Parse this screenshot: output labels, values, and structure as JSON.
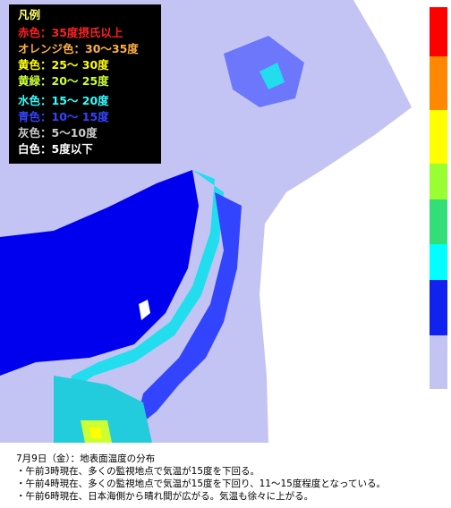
{
  "legend": {
    "title": "凡例",
    "items": [
      {
        "label": "赤色：35度摂氏以上",
        "color": "#ff2020"
      },
      {
        "label": "オレンジ色：30～35度",
        "color": "#ffb040"
      },
      {
        "label": "黄色：25～ 30度",
        "color": "#ffff00"
      },
      {
        "label": "黄緑：20～ 25度",
        "color": "#ccff33"
      },
      {
        "label": "水色：15～ 20度",
        "color": "#33ffff"
      },
      {
        "label": "青色：10～ 15度",
        "color": "#3344ff"
      },
      {
        "label": "灰色：5～10度",
        "color": "#cccccc"
      },
      {
        "label": "白色：5度以下",
        "color": "#ffffff"
      }
    ]
  },
  "caption": {
    "title": "7月9日（金）：地表面温度の分布",
    "notes": [
      "・午前3時現在、多くの監視地点で気温が15度を下回る。",
      "・午前4時現在、多くの監視地点で気温が15度を下回り、11～15度程度となっている。",
      "・午前6時現在、日本海側から晴れ間が広がる。気温も徐々に上がる。"
    ]
  }
}
